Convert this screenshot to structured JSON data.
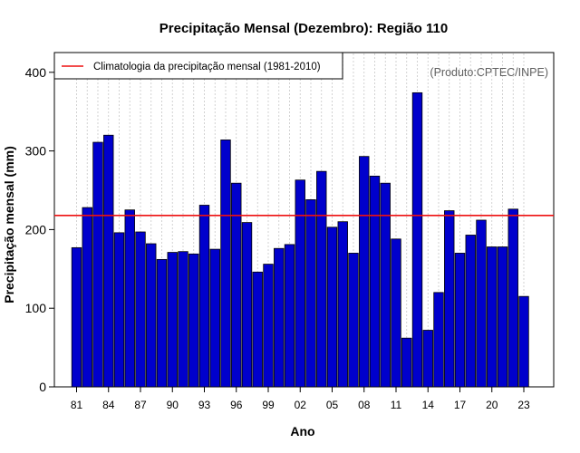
{
  "chart_data": {
    "type": "bar",
    "title": "Precipitação Mensal (Dezembro): Região 110",
    "xlabel": "Ano",
    "ylabel": "Precipitação mensal (mm)",
    "credit": "(Produto:CPTEC/INPE)",
    "ylim": [
      0,
      420
    ],
    "yticks": [
      0,
      100,
      200,
      300,
      400
    ],
    "xtick_labels": [
      "81",
      "84",
      "87",
      "90",
      "93",
      "96",
      "99",
      "02",
      "05",
      "08",
      "11",
      "14",
      "17",
      "20",
      "23"
    ],
    "categories": [
      "1981",
      "1982",
      "1983",
      "1984",
      "1985",
      "1986",
      "1987",
      "1988",
      "1989",
      "1990",
      "1991",
      "1992",
      "1993",
      "1994",
      "1995",
      "1996",
      "1997",
      "1998",
      "1999",
      "2000",
      "2001",
      "2002",
      "2003",
      "2004",
      "2005",
      "2006",
      "2007",
      "2008",
      "2009",
      "2010",
      "2011",
      "2012",
      "2013",
      "2014",
      "2015",
      "2016",
      "2017",
      "2018",
      "2019",
      "2020",
      "2021",
      "2022",
      "2023"
    ],
    "values": [
      177,
      228,
      311,
      320,
      196,
      225,
      197,
      182,
      162,
      171,
      172,
      169,
      231,
      175,
      314,
      259,
      209,
      146,
      156,
      176,
      181,
      263,
      238,
      274,
      203,
      210,
      170,
      293,
      268,
      259,
      188,
      62,
      374,
      72,
      120,
      224,
      170,
      193,
      212,
      178,
      178,
      226,
      115
    ],
    "bar_color": "#0000cc",
    "reference_line": {
      "label": "Climatologia da precipitação mensal (1981-2010)",
      "value": 218,
      "color": "#ee1111"
    },
    "legend_position": "top-left",
    "grid": "vertical-dotted"
  }
}
